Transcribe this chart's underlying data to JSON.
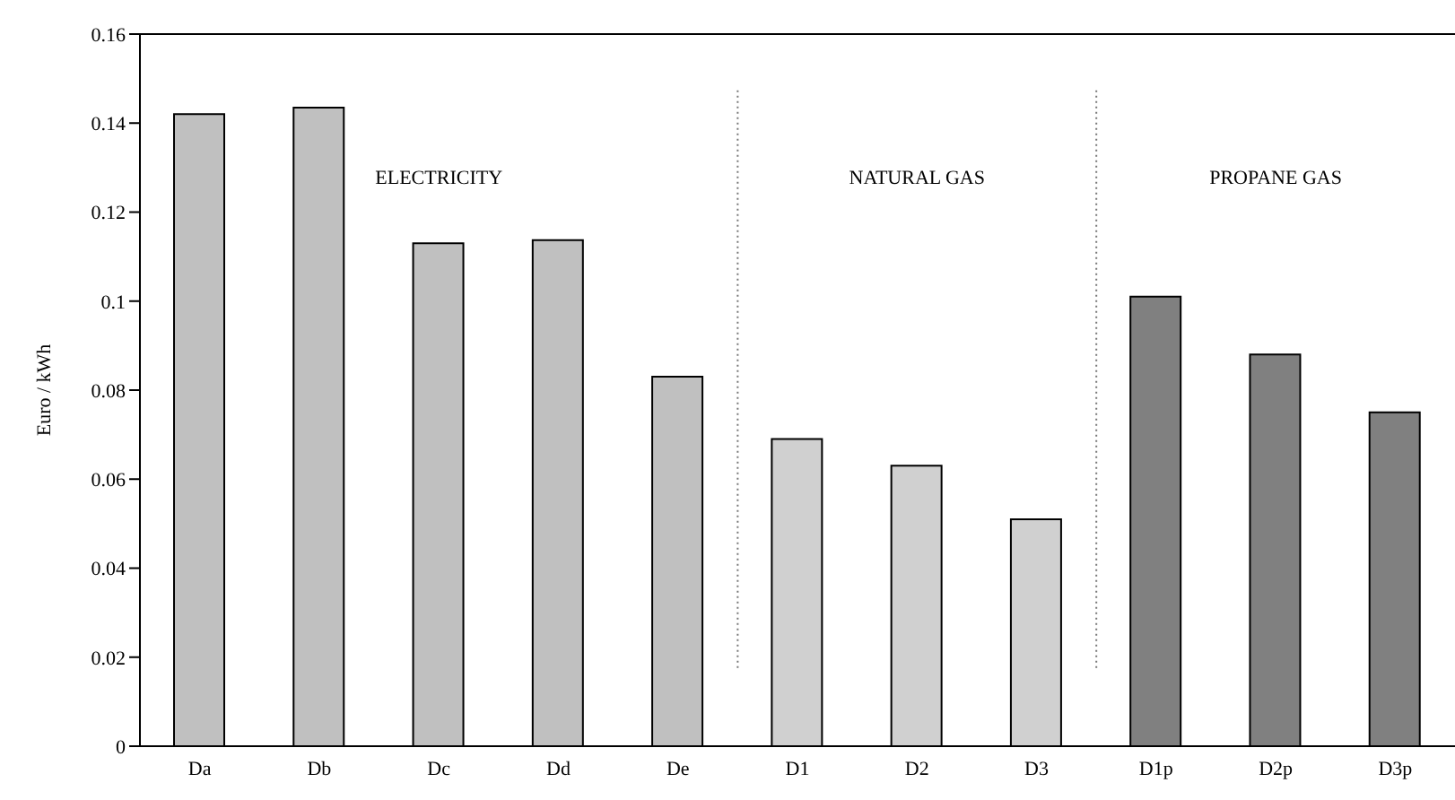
{
  "chart_data": {
    "type": "bar",
    "ylabel": "Euro / kWh",
    "categories": [
      "Da",
      "Db",
      "Dc",
      "Dd",
      "De",
      "D1",
      "D2",
      "D3",
      "D1p",
      "D2p",
      "D3p"
    ],
    "values": [
      0.142,
      0.1435,
      0.113,
      0.1137,
      0.083,
      0.069,
      0.063,
      0.051,
      0.101,
      0.088,
      0.075
    ],
    "colors": [
      "#c0c0c0",
      "#c0c0c0",
      "#c0c0c0",
      "#c0c0c0",
      "#c0c0c0",
      "#d0d0d0",
      "#d0d0d0",
      "#d0d0d0",
      "#808080",
      "#808080",
      "#808080"
    ],
    "ylim": [
      0,
      0.16
    ],
    "yticks": [
      0,
      0.02,
      0.04,
      0.06,
      0.08,
      0.1,
      0.12,
      0.14,
      0.16
    ],
    "annotations": [
      "ELECTRICITY",
      "NATURAL GAS",
      "PROPANE GAS"
    ],
    "grid": false,
    "legend": false
  }
}
